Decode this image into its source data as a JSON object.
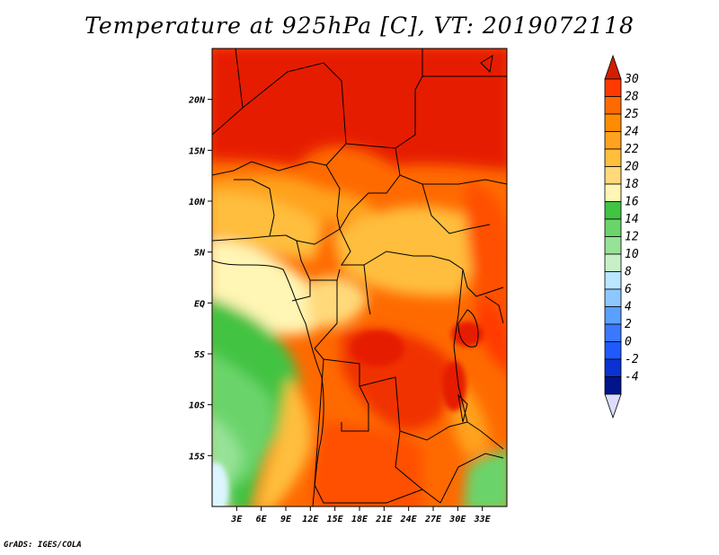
{
  "title": "Temperature at 925hPa [C], VT: 2019072118",
  "credit": "GrADS: IGES/COLA",
  "map": {
    "lon_range": [
      0,
      36
    ],
    "lat_range": [
      -20,
      25
    ],
    "xticks": [
      "3E",
      "6E",
      "9E",
      "12E",
      "15E",
      "18E",
      "21E",
      "24E",
      "27E",
      "30E",
      "33E"
    ],
    "yticks": [
      "20N",
      "15N",
      "10N",
      "5N",
      "EQ",
      "5S",
      "10S",
      "15S"
    ]
  },
  "colorbar": {
    "labels": [
      "30",
      "28",
      "25",
      "24",
      "22",
      "20",
      "18",
      "16",
      "14",
      "12",
      "10",
      "8",
      "6",
      "4",
      "2",
      "0",
      "-2",
      "-4"
    ],
    "colors": [
      "#ff3a00",
      "#ff6a00",
      "#ff8c00",
      "#ffa21e",
      "#ffbe3c",
      "#ffd97a",
      "#fff5b4",
      "#42c342",
      "#6ad46a",
      "#96e296",
      "#c8f0c8",
      "#bae6ff",
      "#8cc8ff",
      "#5aa0ff",
      "#3a78ff",
      "#1e5aff",
      "#0a32d2",
      "#00148c"
    ],
    "top_arrow_color": "#d21e00",
    "bottom_arrow_color": "#dcdcff"
  }
}
